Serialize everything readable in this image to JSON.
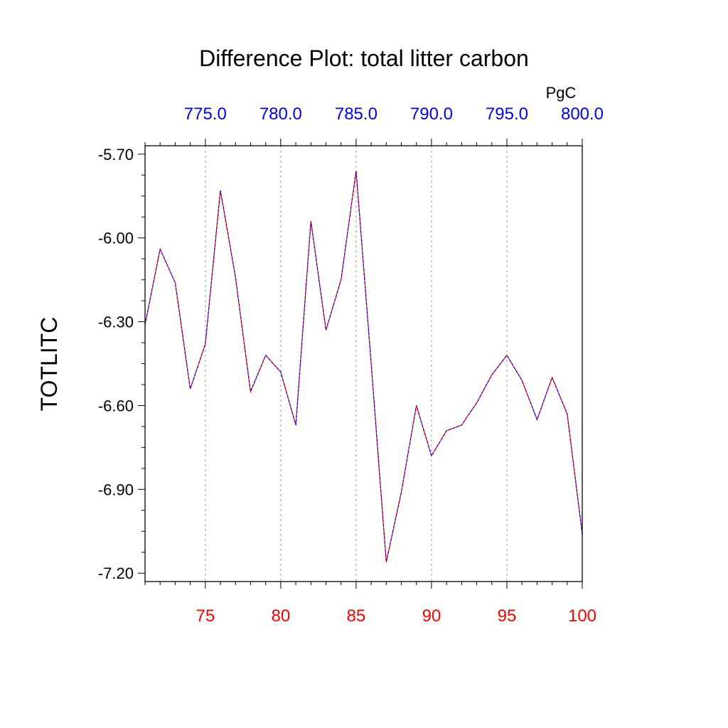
{
  "chart_data": {
    "type": "line",
    "title": "Difference Plot: total litter carbon",
    "ylabel": "TOTLITC",
    "top_axis_unit": "PgC",
    "xlim": [
      71,
      100
    ],
    "ylim": [
      -7.23,
      -5.67
    ],
    "grid": "vertical dashed at major x ticks",
    "y_ticks": [
      {
        "value": -5.7,
        "label": "-5.70"
      },
      {
        "value": -6.0,
        "label": "-6.00"
      },
      {
        "value": -6.3,
        "label": "-6.30"
      },
      {
        "value": -6.6,
        "label": "-6.60"
      },
      {
        "value": -6.9,
        "label": "-6.90"
      },
      {
        "value": -7.2,
        "label": "-7.20"
      }
    ],
    "x_ticks_bottom": [
      {
        "value": 75,
        "label": "75"
      },
      {
        "value": 80,
        "label": "80"
      },
      {
        "value": 85,
        "label": "85"
      },
      {
        "value": 90,
        "label": "90"
      },
      {
        "value": 95,
        "label": "95"
      },
      {
        "value": 100,
        "label": "100"
      }
    ],
    "x_ticks_top": [
      {
        "value": 75,
        "label": "775.0"
      },
      {
        "value": 80,
        "label": "780.0"
      },
      {
        "value": 85,
        "label": "785.0"
      },
      {
        "value": 90,
        "label": "790.0"
      },
      {
        "value": 95,
        "label": "795.0"
      },
      {
        "value": 100,
        "label": "800.0"
      }
    ],
    "x": [
      71,
      72,
      73,
      74,
      75,
      76,
      77,
      78,
      79,
      80,
      81,
      82,
      83,
      84,
      85,
      86,
      87,
      88,
      89,
      90,
      91,
      92,
      93,
      94,
      95,
      96,
      97,
      98,
      99,
      100
    ],
    "series": [
      {
        "values": [
          -6.31,
          -6.04,
          -6.16,
          -6.54,
          -6.38,
          -5.83,
          -6.14,
          -6.55,
          -6.42,
          -6.48,
          -6.67,
          -5.94,
          -6.33,
          -6.15,
          -5.76,
          -6.45,
          -7.16,
          -6.91,
          -6.6,
          -6.78,
          -6.69,
          -6.67,
          -6.59,
          -6.49,
          -6.42,
          -6.51,
          -6.65,
          -6.5,
          -6.63,
          -7.06
        ],
        "color": "#ff0000",
        "style": "solid"
      },
      {
        "values": [
          -6.31,
          -6.04,
          -6.16,
          -6.54,
          -6.38,
          -5.83,
          -6.14,
          -6.55,
          -6.42,
          -6.48,
          -6.67,
          -5.94,
          -6.33,
          -6.15,
          -5.76,
          -6.45,
          -7.16,
          -6.91,
          -6.6,
          -6.78,
          -6.69,
          -6.67,
          -6.59,
          -6.49,
          -6.42,
          -6.51,
          -6.65,
          -6.5,
          -6.63,
          -7.06
        ],
        "color": "#0000ff",
        "style": "dashed"
      }
    ],
    "colors": {
      "bottom_ticks": "#ff0000",
      "top_ticks": "#0000ff",
      "axes": "#000000",
      "grid": "#999999"
    }
  }
}
